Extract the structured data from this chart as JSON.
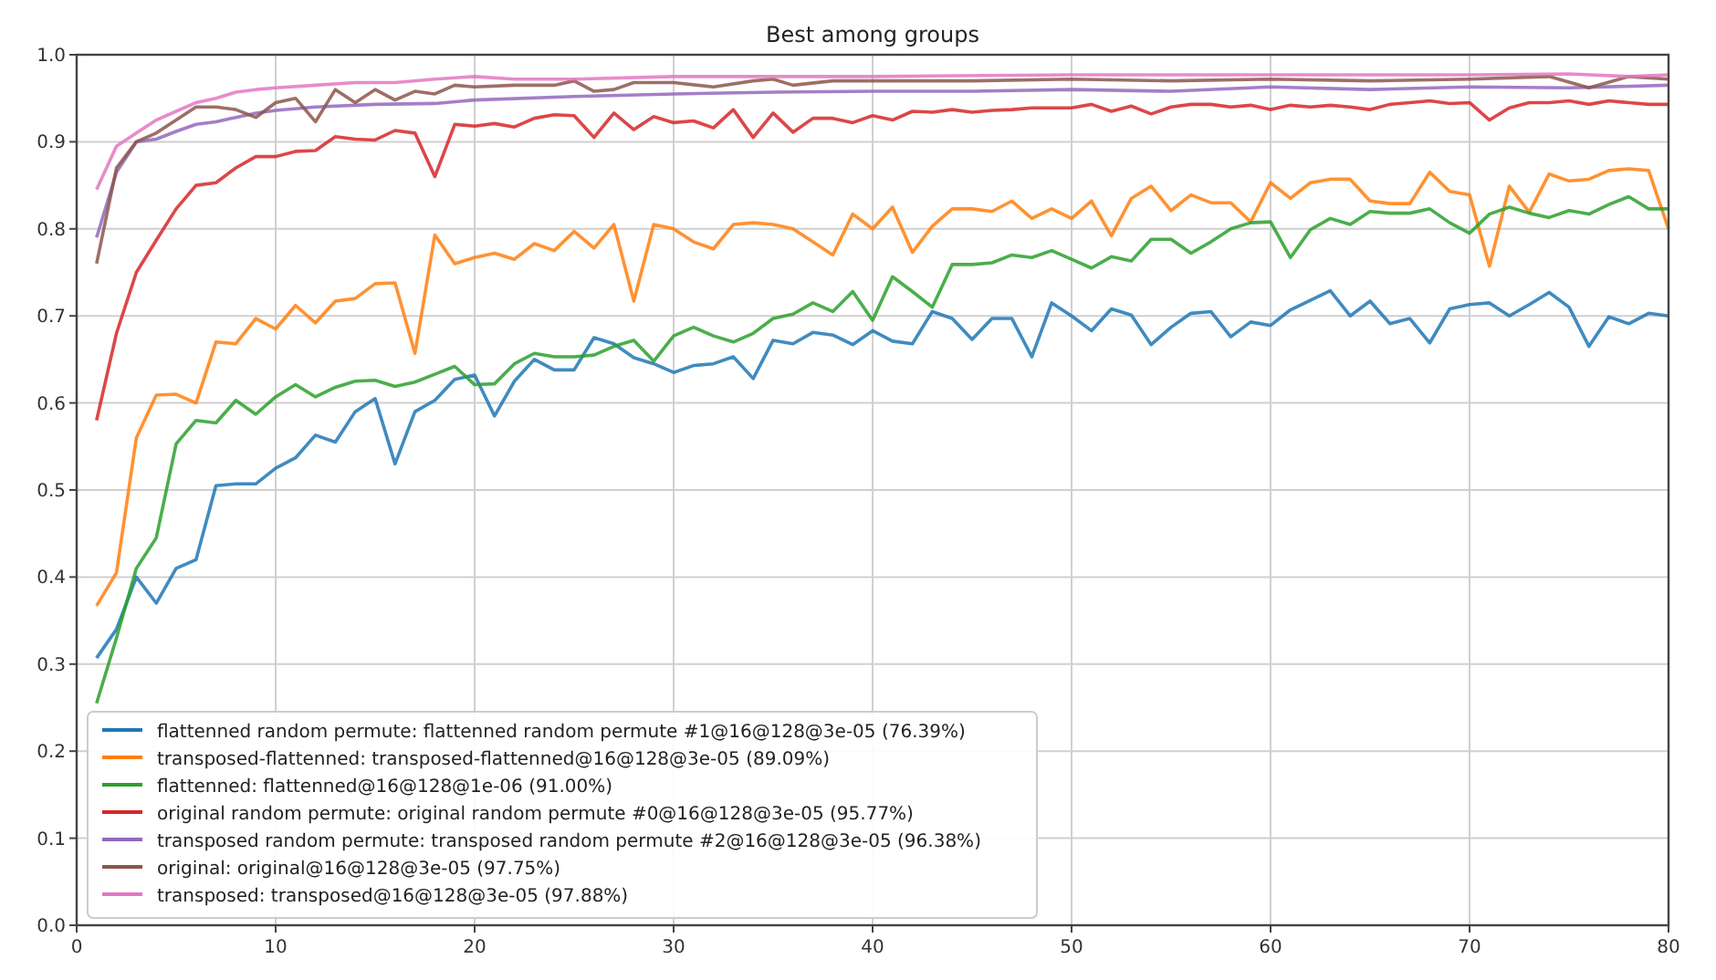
{
  "chart_data": {
    "type": "line",
    "title": "Best among groups",
    "xlim": [
      0,
      80
    ],
    "xticks": [
      0,
      10,
      20,
      30,
      40,
      50,
      60,
      70,
      80
    ],
    "ylim": [
      0,
      1
    ],
    "yticks": [
      {
        "value": 0,
        "label": "0.0"
      },
      0.1,
      0.2,
      0.3,
      0.4,
      0.5,
      0.6,
      0.7,
      0.8,
      0.9,
      {
        "value": 1,
        "label": "1.0"
      }
    ],
    "grid": true,
    "legend": "bottom left",
    "marker": "none",
    "line_style": "solid",
    "series": [
      {
        "name": "flattenned random permute: flattenned random permute #1@16@128@3e-05 (76.39%)",
        "color": "#1f77b4",
        "x": [
          1,
          2,
          3,
          4,
          5,
          6,
          7,
          8,
          9,
          10,
          11,
          12,
          13,
          14,
          15,
          16,
          17,
          18,
          19,
          20,
          21,
          22,
          23,
          24,
          25,
          26,
          27,
          28,
          29,
          30,
          31,
          32,
          33,
          34,
          35,
          36,
          37,
          38,
          39,
          40,
          41,
          42,
          43,
          44,
          45,
          46,
          47,
          48,
          49,
          50,
          51,
          52,
          53,
          54,
          55,
          56,
          57,
          58,
          59,
          60,
          61,
          62,
          63,
          64,
          65,
          66,
          67,
          68,
          69,
          70,
          71,
          72,
          73,
          74,
          75,
          76,
          77,
          78,
          79,
          80
        ],
        "values": [
          0.307,
          0.34,
          0.4,
          0.37,
          0.41,
          0.42,
          0.505,
          0.507,
          0.507,
          0.525,
          0.537,
          0.563,
          0.555,
          0.59,
          0.605,
          0.53,
          0.59,
          0.603,
          0.627,
          0.632,
          0.585,
          0.625,
          0.65,
          0.638,
          0.638,
          0.675,
          0.668,
          0.652,
          0.645,
          0.635,
          0.643,
          0.645,
          0.653,
          0.628,
          0.672,
          0.668,
          0.681,
          0.678,
          0.667,
          0.683,
          0.671,
          0.668,
          0.705,
          0.697,
          0.673,
          0.697,
          0.697,
          0.653,
          0.715,
          0.7,
          0.683,
          0.708,
          0.701,
          0.667,
          0.687,
          0.703,
          0.705,
          0.676,
          0.693,
          0.689,
          0.707,
          0.718,
          0.729,
          0.7,
          0.717,
          0.691,
          0.697,
          0.669,
          0.708,
          0.713,
          0.715,
          0.7,
          0.713,
          0.727,
          0.71,
          0.665,
          0.699,
          0.691,
          0.703,
          0.7
        ]
      },
      {
        "name": "transposed-flattenned: transposed-flattenned@16@128@3e-05 (89.09%)",
        "color": "#ff7f0e",
        "x": [
          1,
          2,
          3,
          4,
          5,
          6,
          7,
          8,
          9,
          10,
          11,
          12,
          13,
          14,
          15,
          16,
          17,
          18,
          19,
          20,
          21,
          22,
          23,
          24,
          25,
          26,
          27,
          28,
          29,
          30,
          31,
          32,
          33,
          34,
          35,
          36,
          37,
          38,
          39,
          40,
          41,
          42,
          43,
          44,
          45,
          46,
          47,
          48,
          49,
          50,
          51,
          52,
          53,
          54,
          55,
          56,
          57,
          58,
          59,
          60,
          61,
          62,
          63,
          64,
          65,
          66,
          67,
          68,
          69,
          70,
          71,
          72,
          73,
          74,
          75,
          76,
          77,
          78,
          79,
          80
        ],
        "values": [
          0.367,
          0.405,
          0.56,
          0.609,
          0.61,
          0.6,
          0.67,
          0.668,
          0.697,
          0.685,
          0.712,
          0.692,
          0.717,
          0.72,
          0.737,
          0.738,
          0.657,
          0.793,
          0.76,
          0.767,
          0.772,
          0.765,
          0.783,
          0.775,
          0.797,
          0.778,
          0.805,
          0.717,
          0.805,
          0.8,
          0.785,
          0.777,
          0.805,
          0.807,
          0.805,
          0.8,
          0.785,
          0.77,
          0.817,
          0.8,
          0.825,
          0.773,
          0.803,
          0.823,
          0.823,
          0.82,
          0.832,
          0.812,
          0.823,
          0.812,
          0.832,
          0.792,
          0.835,
          0.849,
          0.821,
          0.839,
          0.83,
          0.83,
          0.808,
          0.853,
          0.835,
          0.853,
          0.857,
          0.857,
          0.832,
          0.829,
          0.829,
          0.865,
          0.843,
          0.839,
          0.757,
          0.849,
          0.819,
          0.863,
          0.855,
          0.857,
          0.867,
          0.869,
          0.867,
          0.8
        ]
      },
      {
        "name": "flattenned: flattenned@16@128@1e-06 (91.00%)",
        "color": "#2ca02c",
        "x": [
          1,
          2,
          3,
          4,
          5,
          6,
          7,
          8,
          9,
          10,
          11,
          12,
          13,
          14,
          15,
          16,
          17,
          18,
          19,
          20,
          21,
          22,
          23,
          24,
          25,
          26,
          27,
          28,
          29,
          30,
          31,
          32,
          33,
          34,
          35,
          36,
          37,
          38,
          39,
          40,
          41,
          42,
          43,
          44,
          45,
          46,
          47,
          48,
          49,
          50,
          51,
          52,
          53,
          54,
          55,
          56,
          57,
          58,
          59,
          60,
          61,
          62,
          63,
          64,
          65,
          66,
          67,
          68,
          69,
          70,
          71,
          72,
          73,
          74,
          75,
          76,
          77,
          78,
          79,
          80
        ],
        "values": [
          0.255,
          0.33,
          0.41,
          0.445,
          0.553,
          0.58,
          0.577,
          0.603,
          0.587,
          0.607,
          0.621,
          0.607,
          0.618,
          0.625,
          0.626,
          0.619,
          0.624,
          0.633,
          0.642,
          0.621,
          0.622,
          0.645,
          0.657,
          0.653,
          0.653,
          0.655,
          0.665,
          0.672,
          0.648,
          0.677,
          0.687,
          0.677,
          0.67,
          0.68,
          0.697,
          0.702,
          0.715,
          0.705,
          0.728,
          0.695,
          0.745,
          0.728,
          0.71,
          0.759,
          0.759,
          0.761,
          0.77,
          0.767,
          0.775,
          0.765,
          0.755,
          0.768,
          0.763,
          0.788,
          0.788,
          0.772,
          0.785,
          0.8,
          0.807,
          0.808,
          0.767,
          0.799,
          0.812,
          0.805,
          0.82,
          0.818,
          0.818,
          0.823,
          0.807,
          0.795,
          0.817,
          0.825,
          0.818,
          0.813,
          0.821,
          0.817,
          0.828,
          0.837,
          0.823,
          0.823
        ]
      },
      {
        "name": "original random permute: original random permute #0@16@128@3e-05 (95.77%)",
        "color": "#d62728",
        "x": [
          1,
          2,
          3,
          4,
          5,
          6,
          7,
          8,
          9,
          10,
          11,
          12,
          13,
          14,
          15,
          16,
          17,
          18,
          19,
          20,
          21,
          22,
          23,
          24,
          25,
          26,
          27,
          28,
          29,
          30,
          31,
          32,
          33,
          34,
          35,
          36,
          37,
          38,
          39,
          40,
          41,
          42,
          43,
          44,
          45,
          46,
          47,
          48,
          49,
          50,
          51,
          52,
          53,
          54,
          55,
          56,
          57,
          58,
          59,
          60,
          61,
          62,
          63,
          64,
          65,
          66,
          67,
          68,
          69,
          70,
          71,
          72,
          73,
          74,
          75,
          76,
          77,
          78,
          79,
          80
        ],
        "values": [
          0.58,
          0.68,
          0.75,
          0.787,
          0.823,
          0.85,
          0.853,
          0.87,
          0.883,
          0.883,
          0.889,
          0.89,
          0.906,
          0.903,
          0.902,
          0.913,
          0.91,
          0.86,
          0.92,
          0.918,
          0.921,
          0.917,
          0.927,
          0.931,
          0.93,
          0.905,
          0.933,
          0.914,
          0.929,
          0.922,
          0.924,
          0.916,
          0.937,
          0.905,
          0.933,
          0.911,
          0.927,
          0.927,
          0.922,
          0.93,
          0.925,
          0.935,
          0.934,
          0.937,
          0.934,
          0.936,
          0.937,
          0.939,
          0.939,
          0.939,
          0.943,
          0.935,
          0.941,
          0.932,
          0.94,
          0.943,
          0.943,
          0.94,
          0.942,
          0.937,
          0.942,
          0.94,
          0.942,
          0.94,
          0.937,
          0.943,
          0.945,
          0.947,
          0.944,
          0.945,
          0.925,
          0.939,
          0.945,
          0.945,
          0.947,
          0.943,
          0.947,
          0.945,
          0.943,
          0.943
        ]
      },
      {
        "name": "transposed random permute: transposed random permute #2@16@128@3e-05 (96.38%)",
        "color": "#9467bd",
        "x": [
          1,
          2,
          3,
          4,
          5,
          6,
          7,
          8,
          9,
          10,
          12,
          15,
          18,
          20,
          25,
          30,
          35,
          40,
          45,
          50,
          55,
          60,
          65,
          70,
          75,
          80
        ],
        "values": [
          0.79,
          0.865,
          0.9,
          0.903,
          0.912,
          0.92,
          0.923,
          0.928,
          0.933,
          0.936,
          0.94,
          0.943,
          0.944,
          0.948,
          0.952,
          0.955,
          0.957,
          0.958,
          0.958,
          0.96,
          0.958,
          0.963,
          0.96,
          0.963,
          0.962,
          0.965
        ]
      },
      {
        "name": "original: original@16@128@3e-05 (97.75%)",
        "color": "#8c564b",
        "x": [
          1,
          2,
          3,
          4,
          5,
          6,
          7,
          8,
          9,
          10,
          11,
          12,
          13,
          14,
          15,
          16,
          17,
          18,
          19,
          20,
          22,
          24,
          25,
          26,
          27,
          28,
          30,
          32,
          34,
          35,
          36,
          38,
          40,
          45,
          50,
          55,
          60,
          65,
          70,
          74,
          76,
          78,
          80
        ],
        "values": [
          0.76,
          0.87,
          0.9,
          0.91,
          0.925,
          0.94,
          0.94,
          0.937,
          0.928,
          0.945,
          0.95,
          0.923,
          0.96,
          0.945,
          0.96,
          0.948,
          0.958,
          0.955,
          0.965,
          0.963,
          0.965,
          0.965,
          0.97,
          0.958,
          0.96,
          0.968,
          0.968,
          0.963,
          0.97,
          0.972,
          0.965,
          0.97,
          0.97,
          0.97,
          0.972,
          0.97,
          0.972,
          0.97,
          0.972,
          0.975,
          0.962,
          0.975,
          0.972
        ]
      },
      {
        "name": "transposed: transposed@16@128@3e-05 (97.88%)",
        "color": "#e377c2",
        "x": [
          1,
          2,
          3,
          4,
          5,
          6,
          7,
          8,
          9,
          10,
          12,
          14,
          16,
          18,
          20,
          22,
          25,
          30,
          35,
          40,
          50,
          60,
          70,
          75,
          78,
          80
        ],
        "values": [
          0.845,
          0.895,
          0.91,
          0.925,
          0.935,
          0.945,
          0.95,
          0.957,
          0.96,
          0.962,
          0.965,
          0.968,
          0.968,
          0.972,
          0.975,
          0.972,
          0.972,
          0.975,
          0.975,
          0.975,
          0.977,
          0.977,
          0.977,
          0.978,
          0.975,
          0.977
        ]
      }
    ]
  }
}
